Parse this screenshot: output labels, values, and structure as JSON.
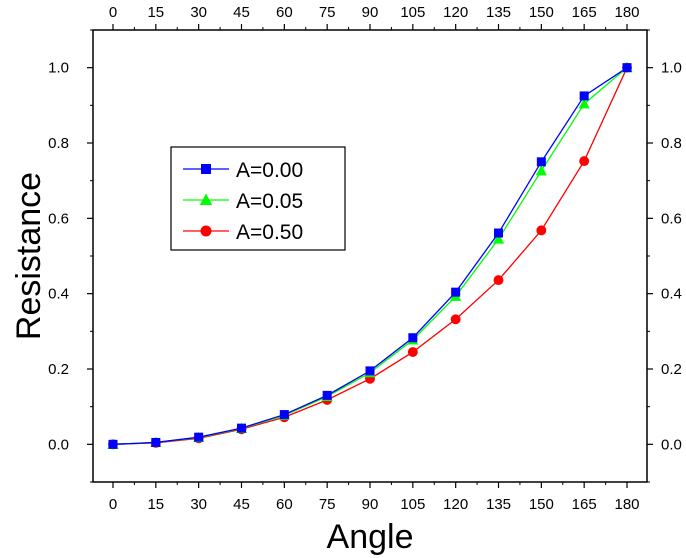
{
  "chart_data": {
    "type": "line",
    "xlabel": "Angle",
    "ylabel": "Resistance",
    "x": [
      0,
      15,
      30,
      45,
      60,
      75,
      90,
      105,
      120,
      135,
      150,
      165,
      180
    ],
    "xlim": [
      -7,
      187
    ],
    "ylim": [
      -0.1,
      1.1
    ],
    "xticks": [
      0,
      15,
      30,
      45,
      60,
      75,
      90,
      105,
      120,
      135,
      150,
      165,
      180
    ],
    "yticks": [
      0.0,
      0.2,
      0.4,
      0.6,
      0.8,
      1.0
    ],
    "xtick_labels": [
      "0",
      "15",
      "30",
      "45",
      "60",
      "75",
      "90",
      "105",
      "120",
      "135",
      "150",
      "165",
      "180"
    ],
    "ytick_labels": [
      "0.0",
      "0.2",
      "0.4",
      "0.6",
      "0.8",
      "1.0"
    ],
    "grid": false,
    "legend_position": "upper-left",
    "series": [
      {
        "name": "A=0.00",
        "color": "#0000ff",
        "marker": "square",
        "values": [
          0.0,
          0.005,
          0.019,
          0.043,
          0.079,
          0.13,
          0.195,
          0.283,
          0.404,
          0.561,
          0.75,
          0.925,
          1.0
        ]
      },
      {
        "name": "A=0.05",
        "color": "#00ff00",
        "marker": "triangle",
        "values": [
          0.0,
          0.005,
          0.018,
          0.042,
          0.077,
          0.127,
          0.19,
          0.277,
          0.393,
          0.545,
          0.726,
          0.904,
          1.0
        ]
      },
      {
        "name": "A=0.50",
        "color": "#ff0000",
        "marker": "circle",
        "values": [
          0.0,
          0.004,
          0.016,
          0.04,
          0.072,
          0.118,
          0.174,
          0.245,
          0.332,
          0.436,
          0.568,
          0.752,
          1.0
        ]
      }
    ]
  }
}
